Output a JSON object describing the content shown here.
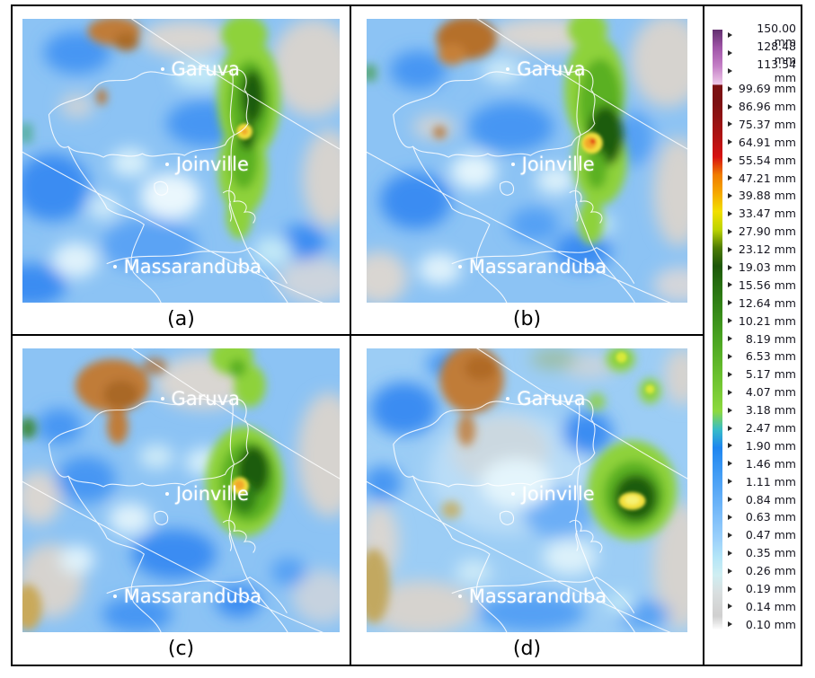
{
  "panels": [
    {
      "id": "a",
      "caption": "(a)"
    },
    {
      "id": "b",
      "caption": "(b)"
    },
    {
      "id": "c",
      "caption": "(c)"
    },
    {
      "id": "d",
      "caption": "(d)"
    }
  ],
  "cities": {
    "garuva": "Garuva",
    "joinville": "Joinville",
    "massaranduba": "Massaranduba"
  },
  "legend": {
    "unit": "mm",
    "entries": [
      {
        "label": "150.00 mm",
        "color": "#63306f"
      },
      {
        "label": "128.48 mm",
        "color": "#a055a8"
      },
      {
        "label": "113.54 mm",
        "color": "#c47fc6"
      },
      {
        "label": "99.69 mm",
        "color": "#eec9e9"
      },
      {
        "label": "86.96 mm",
        "color": "#7c1012",
        "sharp": true
      },
      {
        "label": "75.37 mm",
        "color": "#951313"
      },
      {
        "label": "64.91 mm",
        "color": "#b31212"
      },
      {
        "label": "55.54 mm",
        "color": "#d61111"
      },
      {
        "label": "47.21 mm",
        "color": "#f07d00"
      },
      {
        "label": "39.88 mm",
        "color": "#f5a800"
      },
      {
        "label": "33.47 mm",
        "color": "#f2df00"
      },
      {
        "label": "27.90 mm",
        "color": "#bdd400"
      },
      {
        "label": "23.12 mm",
        "color": "#4e7c04"
      },
      {
        "label": "19.03 mm",
        "color": "#1d5708"
      },
      {
        "label": "15.56 mm",
        "color": "#266e10"
      },
      {
        "label": "12.64 mm",
        "color": "#308015"
      },
      {
        "label": "10.21 mm",
        "color": "#3c921b"
      },
      {
        "label": "8.19 mm",
        "color": "#4aa421"
      },
      {
        "label": "6.53 mm",
        "color": "#5ab227"
      },
      {
        "label": "5.17 mm",
        "color": "#6ac02e"
      },
      {
        "label": "4.07 mm",
        "color": "#7bcc36"
      },
      {
        "label": "3.18 mm",
        "color": "#8dd93f"
      },
      {
        "label": "2.47 mm",
        "color": "#38bcc8"
      },
      {
        "label": "1.90 mm",
        "color": "#1f86f0"
      },
      {
        "label": "1.46 mm",
        "color": "#3795f3"
      },
      {
        "label": "1.11 mm",
        "color": "#50a4f6"
      },
      {
        "label": "0.84 mm",
        "color": "#69b2f8"
      },
      {
        "label": "0.63 mm",
        "color": "#82c1fa"
      },
      {
        "label": "0.47 mm",
        "color": "#9bd0fb"
      },
      {
        "label": "0.35 mm",
        "color": "#b3e5f8"
      },
      {
        "label": "0.26 mm",
        "color": "#cfeef2"
      },
      {
        "label": "0.19 mm",
        "color": "#d9dedf"
      },
      {
        "label": "0.14 mm",
        "color": "#d2d2d2"
      },
      {
        "label": "0.10 mm",
        "color": "#cacaca"
      }
    ]
  },
  "map_palette": {
    "base_blue": "#8cc3f4",
    "dark_blue": "#3a8cf2",
    "light_cyan": "#dff2fb",
    "gray_no_data": "#d6d3cf",
    "brown_terrain": "#c07c38",
    "green_rain": "#8ed23a",
    "dark_green_rain": "#1e5c10",
    "core_yellow": "#f3e03c",
    "core_orange": "#f2a92c",
    "core_red": "#e02810",
    "boundary_lines": "#ffffff",
    "border": "#000000"
  }
}
